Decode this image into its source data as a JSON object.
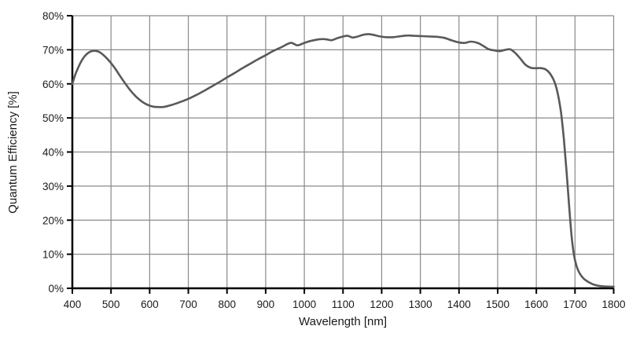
{
  "chart_data": {
    "type": "line",
    "title": "",
    "xlabel": "Wavelength [nm]",
    "ylabel": "Quantum Efficiency [%]",
    "xlim": [
      400,
      1800
    ],
    "ylim": [
      0,
      80
    ],
    "x_ticks": [
      400,
      500,
      600,
      700,
      800,
      900,
      1000,
      1100,
      1200,
      1300,
      1400,
      1500,
      1600,
      1700,
      1800
    ],
    "x_tick_labels": [
      "400",
      "500",
      "600",
      "700",
      "800",
      "900",
      "1000",
      "1100",
      "1200",
      "1300",
      "1400",
      "1500",
      "1600",
      "1700",
      "1800"
    ],
    "y_ticks": [
      0,
      10,
      20,
      30,
      40,
      50,
      60,
      70,
      80
    ],
    "y_tick_labels": [
      "0%",
      "10%",
      "20%",
      "30%",
      "40%",
      "50%",
      "60%",
      "70%",
      "80%"
    ],
    "grid": true,
    "legend": "none",
    "series": [
      {
        "name": "Quantum Efficiency",
        "points": [
          [
            400,
            60.0
          ],
          [
            408,
            62.8
          ],
          [
            416,
            65.0
          ],
          [
            424,
            66.8
          ],
          [
            432,
            68.1
          ],
          [
            440,
            69.0
          ],
          [
            448,
            69.5
          ],
          [
            456,
            69.7
          ],
          [
            464,
            69.6
          ],
          [
            472,
            69.2
          ],
          [
            480,
            68.5
          ],
          [
            490,
            67.4
          ],
          [
            500,
            66.1
          ],
          [
            510,
            64.6
          ],
          [
            520,
            62.9
          ],
          [
            530,
            61.2
          ],
          [
            540,
            59.6
          ],
          [
            550,
            58.1
          ],
          [
            560,
            56.8
          ],
          [
            570,
            55.7
          ],
          [
            580,
            54.8
          ],
          [
            590,
            54.1
          ],
          [
            600,
            53.6
          ],
          [
            610,
            53.3
          ],
          [
            620,
            53.2
          ],
          [
            635,
            53.2
          ],
          [
            650,
            53.6
          ],
          [
            665,
            54.1
          ],
          [
            680,
            54.7
          ],
          [
            700,
            55.6
          ],
          [
            720,
            56.7
          ],
          [
            740,
            57.9
          ],
          [
            760,
            59.2
          ],
          [
            780,
            60.5
          ],
          [
            800,
            61.9
          ],
          [
            820,
            63.2
          ],
          [
            840,
            64.6
          ],
          [
            860,
            65.9
          ],
          [
            880,
            67.2
          ],
          [
            900,
            68.4
          ],
          [
            915,
            69.4
          ],
          [
            930,
            70.2
          ],
          [
            945,
            71.0
          ],
          [
            958,
            71.8
          ],
          [
            968,
            72.0
          ],
          [
            982,
            71.3
          ],
          [
            995,
            71.8
          ],
          [
            1010,
            72.4
          ],
          [
            1025,
            72.8
          ],
          [
            1040,
            73.1
          ],
          [
            1055,
            73.1
          ],
          [
            1070,
            72.8
          ],
          [
            1085,
            73.4
          ],
          [
            1100,
            73.9
          ],
          [
            1112,
            74.1
          ],
          [
            1125,
            73.6
          ],
          [
            1138,
            73.9
          ],
          [
            1152,
            74.4
          ],
          [
            1165,
            74.6
          ],
          [
            1178,
            74.4
          ],
          [
            1192,
            74.0
          ],
          [
            1210,
            73.7
          ],
          [
            1230,
            73.7
          ],
          [
            1250,
            74.0
          ],
          [
            1268,
            74.2
          ],
          [
            1285,
            74.1
          ],
          [
            1305,
            74.0
          ],
          [
            1325,
            73.9
          ],
          [
            1345,
            73.8
          ],
          [
            1362,
            73.5
          ],
          [
            1380,
            72.8
          ],
          [
            1398,
            72.2
          ],
          [
            1414,
            72.0
          ],
          [
            1430,
            72.4
          ],
          [
            1446,
            72.1
          ],
          [
            1462,
            71.2
          ],
          [
            1476,
            70.2
          ],
          [
            1492,
            69.8
          ],
          [
            1506,
            69.6
          ],
          [
            1520,
            70.0
          ],
          [
            1533,
            70.1
          ],
          [
            1546,
            69.0
          ],
          [
            1558,
            67.5
          ],
          [
            1572,
            65.6
          ],
          [
            1586,
            64.7
          ],
          [
            1600,
            64.6
          ],
          [
            1614,
            64.6
          ],
          [
            1626,
            64.1
          ],
          [
            1638,
            62.6
          ],
          [
            1648,
            60.3
          ],
          [
            1656,
            56.8
          ],
          [
            1664,
            51.5
          ],
          [
            1671,
            44.0
          ],
          [
            1678,
            34.5
          ],
          [
            1685,
            24.0
          ],
          [
            1691,
            15.5
          ],
          [
            1697,
            10.0
          ],
          [
            1704,
            6.5
          ],
          [
            1712,
            4.4
          ],
          [
            1722,
            2.9
          ],
          [
            1734,
            1.9
          ],
          [
            1746,
            1.2
          ],
          [
            1758,
            0.8
          ],
          [
            1772,
            0.6
          ],
          [
            1786,
            0.5
          ],
          [
            1800,
            0.45
          ]
        ]
      }
    ],
    "colors": {
      "line": "#595959",
      "gridline": "#8a8a8a",
      "axis": "#000000",
      "text": "#1a1a1a",
      "background": "#ffffff"
    }
  }
}
